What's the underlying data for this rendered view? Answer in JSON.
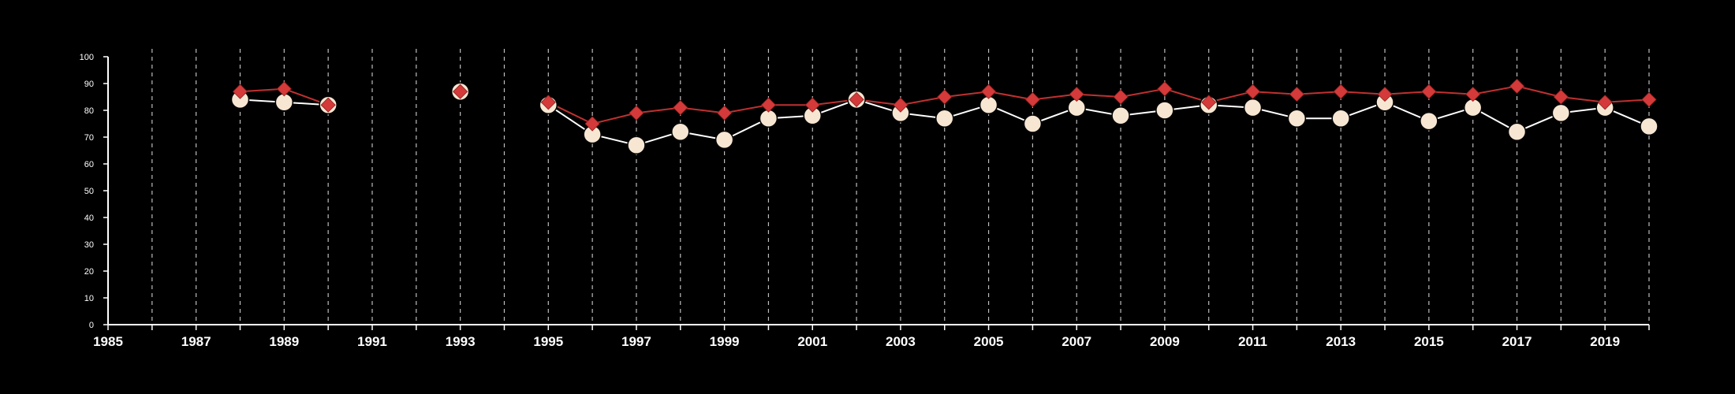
{
  "chart_data": {
    "type": "line",
    "title": "",
    "xlabel": "",
    "ylabel": "",
    "xlim": [
      1985,
      2020
    ],
    "ylim": [
      0,
      100
    ],
    "x_ticks": [
      1985,
      1987,
      1989,
      1991,
      1993,
      1995,
      1997,
      1999,
      2001,
      2003,
      2005,
      2007,
      2009,
      2011,
      2013,
      2015,
      2017,
      2019
    ],
    "y_ticks": [
      0,
      10,
      20,
      30,
      40,
      50,
      60,
      70,
      80,
      90,
      100
    ],
    "grid": "vertical dashed lines at each year",
    "legend": "none",
    "colors": {
      "background": "#000000",
      "axis": "#ffffff",
      "grid": "#bdbdbd",
      "series_circle": "#f7e6d2",
      "series_diamond": "#d43a3a",
      "series_diamond_line": "#c03030"
    },
    "series": [
      {
        "marker": "circle",
        "segments": [
          [
            [
              1988,
              84
            ],
            [
              1989,
              83
            ],
            [
              1990,
              82
            ]
          ],
          [
            [
              1993,
              87
            ]
          ],
          [
            [
              1995,
              82
            ],
            [
              1996,
              71
            ],
            [
              1997,
              67
            ],
            [
              1998,
              72
            ],
            [
              1999,
              69
            ],
            [
              2000,
              77
            ],
            [
              2001,
              78
            ],
            [
              2002,
              84
            ],
            [
              2003,
              79
            ],
            [
              2004,
              77
            ],
            [
              2005,
              82
            ],
            [
              2006,
              75
            ],
            [
              2007,
              81
            ],
            [
              2008,
              78
            ],
            [
              2009,
              80
            ],
            [
              2010,
              82
            ],
            [
              2011,
              81
            ],
            [
              2012,
              77
            ],
            [
              2013,
              77
            ],
            [
              2014,
              83
            ],
            [
              2015,
              76
            ],
            [
              2016,
              81
            ],
            [
              2017,
              72
            ],
            [
              2018,
              79
            ],
            [
              2019,
              81
            ],
            [
              2020,
              74
            ]
          ]
        ]
      },
      {
        "marker": "diamond",
        "segments": [
          [
            [
              1988,
              87
            ],
            [
              1989,
              88
            ],
            [
              1990,
              82
            ]
          ],
          [
            [
              1993,
              87
            ]
          ],
          [
            [
              1995,
              83
            ],
            [
              1996,
              75
            ],
            [
              1997,
              79
            ],
            [
              1998,
              81
            ],
            [
              1999,
              79
            ],
            [
              2000,
              82
            ],
            [
              2001,
              82
            ],
            [
              2002,
              84
            ],
            [
              2003,
              82
            ],
            [
              2004,
              85
            ],
            [
              2005,
              87
            ],
            [
              2006,
              84
            ],
            [
              2007,
              86
            ],
            [
              2008,
              85
            ],
            [
              2009,
              88
            ],
            [
              2010,
              83
            ],
            [
              2011,
              87
            ],
            [
              2012,
              86
            ],
            [
              2013,
              87
            ],
            [
              2014,
              86
            ],
            [
              2015,
              87
            ],
            [
              2016,
              86
            ],
            [
              2017,
              89
            ],
            [
              2018,
              85
            ],
            [
              2019,
              83
            ],
            [
              2020,
              84
            ]
          ]
        ]
      }
    ]
  }
}
